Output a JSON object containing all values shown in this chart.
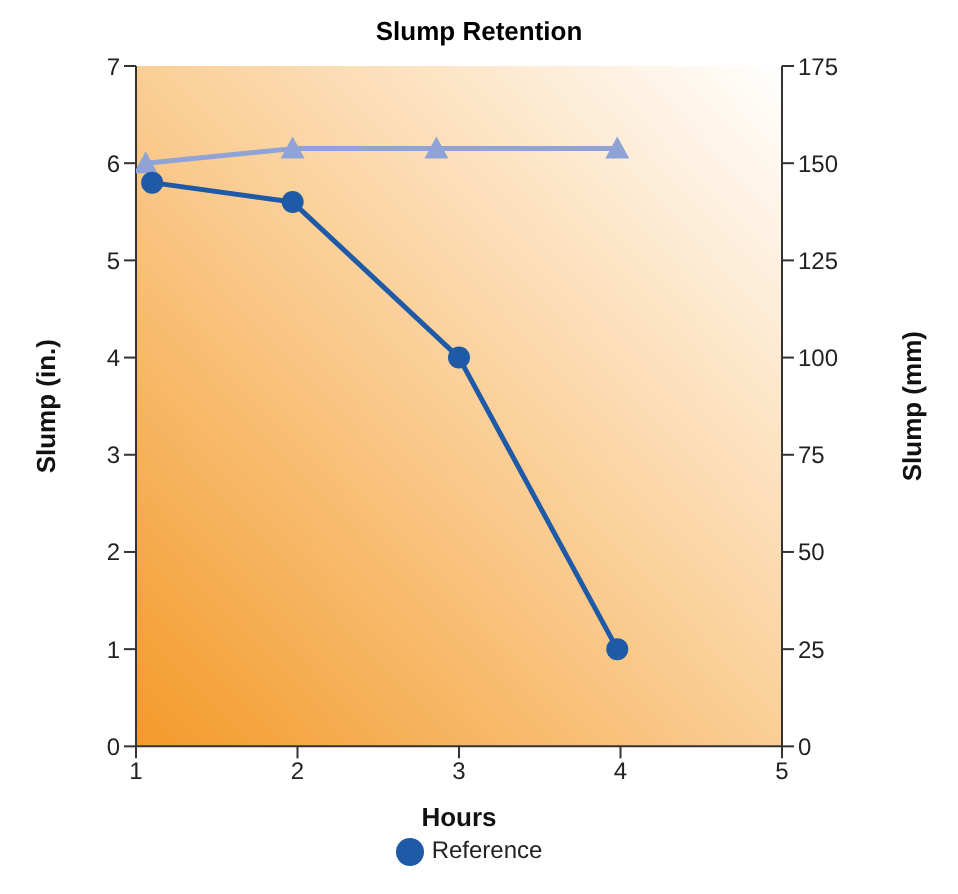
{
  "chart_data": {
    "type": "line",
    "title": "Slump Retention",
    "xlabel": "Hours",
    "ylabel": "Slump (in.)",
    "y2label": "Slump (mm)",
    "xlim": [
      1,
      5
    ],
    "xticks": [
      1,
      2,
      3,
      4,
      5
    ],
    "ylim": [
      0,
      7
    ],
    "yticks": [
      0,
      1,
      2,
      3,
      4,
      5,
      6,
      7
    ],
    "y2lim": [
      0,
      175
    ],
    "y2ticks": [
      0,
      25,
      50,
      75,
      100,
      125,
      150,
      175
    ],
    "legend": "bottom",
    "series": [
      {
        "color": "#8fa3d6",
        "marker": "triangle",
        "x": [
          1.06,
          1.97,
          2.86,
          3.98
        ],
        "values": [
          6.0,
          6.15,
          6.15,
          6.15
        ]
      },
      {
        "name": "Reference",
        "color": "#1f5aa6",
        "marker": "circle",
        "x": [
          1.1,
          1.97,
          3.0,
          3.98
        ],
        "values": [
          5.8,
          5.6,
          4.0,
          1.0
        ]
      }
    ]
  }
}
